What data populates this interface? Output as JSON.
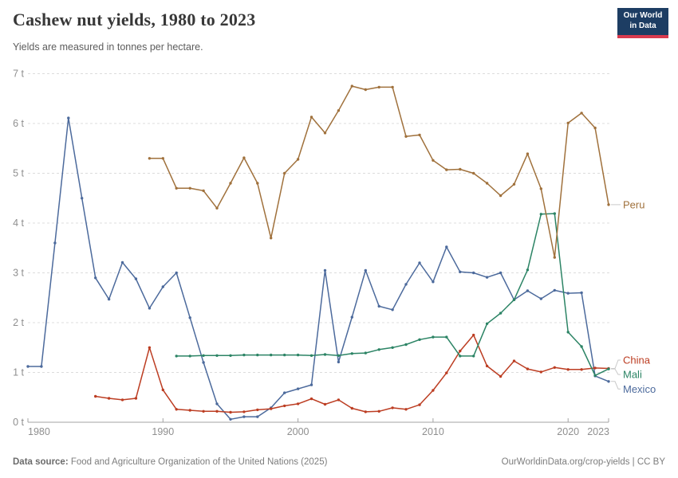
{
  "header": {
    "title": "Cashew nut yields, 1980 to 2023",
    "subtitle": "Yields are measured in tonnes per hectare."
  },
  "logo": {
    "line1": "Our World",
    "line2": "in Data",
    "bg_color": "#1d3d63",
    "stripe_color": "#d93a4e",
    "text_color": "#ffffff"
  },
  "chart_data": {
    "type": "line",
    "title": "Cashew nut yields, 1980 to 2023",
    "xlabel": "",
    "ylabel": "tonnes per hectare",
    "unit_suffix": " t",
    "xlim": [
      1980,
      2023
    ],
    "ylim": [
      0,
      7
    ],
    "grid": "dashed-horizontal",
    "legend_position": "right-edge-line-labels",
    "yticks": [
      {
        "value": 0,
        "label": "0 t"
      },
      {
        "value": 1,
        "label": "1 t"
      },
      {
        "value": 2,
        "label": "2 t"
      },
      {
        "value": 3,
        "label": "3 t"
      },
      {
        "value": 4,
        "label": "4 t"
      },
      {
        "value": 5,
        "label": "5 t"
      },
      {
        "value": 6,
        "label": "6 t"
      },
      {
        "value": 7,
        "label": "7 t"
      }
    ],
    "xticks": [
      {
        "value": 1980,
        "label": "1980"
      },
      {
        "value": 1990,
        "label": "1990"
      },
      {
        "value": 2000,
        "label": "2000"
      },
      {
        "value": 2010,
        "label": "2010"
      },
      {
        "value": 2020,
        "label": "2020"
      },
      {
        "value": 2023,
        "label": "2023"
      }
    ],
    "series": [
      {
        "name": "Mexico",
        "color": "#4C6A9C",
        "points": [
          [
            1980,
            1.12
          ],
          [
            1981,
            1.12
          ],
          [
            1982,
            3.6
          ],
          [
            1983,
            6.11
          ],
          [
            1984,
            4.5
          ],
          [
            1985,
            2.9
          ],
          [
            1986,
            2.47
          ],
          [
            1987,
            3.21
          ],
          [
            1988,
            2.88
          ],
          [
            1989,
            2.29
          ],
          [
            1990,
            2.72
          ],
          [
            1991,
            3.0
          ],
          [
            1992,
            2.1
          ],
          [
            1993,
            1.2
          ],
          [
            1994,
            0.37
          ],
          [
            1995,
            0.06
          ],
          [
            1996,
            0.11
          ],
          [
            1997,
            0.11
          ],
          [
            1998,
            0.29
          ],
          [
            1999,
            0.59
          ],
          [
            2000,
            0.67
          ],
          [
            2001,
            0.75
          ],
          [
            2002,
            3.05
          ],
          [
            2003,
            1.21
          ],
          [
            2004,
            2.11
          ],
          [
            2005,
            3.05
          ],
          [
            2006,
            2.33
          ],
          [
            2007,
            2.26
          ],
          [
            2008,
            2.77
          ],
          [
            2009,
            3.2
          ],
          [
            2010,
            2.82
          ],
          [
            2011,
            3.52
          ],
          [
            2012,
            3.02
          ],
          [
            2013,
            3.0
          ],
          [
            2014,
            2.91
          ],
          [
            2015,
            3.0
          ],
          [
            2016,
            2.46
          ],
          [
            2017,
            2.64
          ],
          [
            2018,
            2.48
          ],
          [
            2019,
            2.65
          ],
          [
            2020,
            2.59
          ],
          [
            2021,
            2.6
          ],
          [
            2022,
            0.93
          ],
          [
            2023,
            0.82
          ]
        ]
      },
      {
        "name": "China",
        "color": "#BC3D22",
        "points": [
          [
            1985,
            0.52
          ],
          [
            1986,
            0.48
          ],
          [
            1987,
            0.45
          ],
          [
            1988,
            0.48
          ],
          [
            1989,
            1.5
          ],
          [
            1990,
            0.65
          ],
          [
            1991,
            0.26
          ],
          [
            1992,
            0.24
          ],
          [
            1993,
            0.22
          ],
          [
            1994,
            0.22
          ],
          [
            1995,
            0.2
          ],
          [
            1996,
            0.21
          ],
          [
            1997,
            0.25
          ],
          [
            1998,
            0.27
          ],
          [
            1999,
            0.33
          ],
          [
            2000,
            0.37
          ],
          [
            2001,
            0.47
          ],
          [
            2002,
            0.36
          ],
          [
            2003,
            0.45
          ],
          [
            2004,
            0.28
          ],
          [
            2005,
            0.21
          ],
          [
            2006,
            0.22
          ],
          [
            2007,
            0.29
          ],
          [
            2008,
            0.26
          ],
          [
            2009,
            0.35
          ],
          [
            2010,
            0.64
          ],
          [
            2011,
            0.99
          ],
          [
            2012,
            1.43
          ],
          [
            2013,
            1.75
          ],
          [
            2014,
            1.13
          ],
          [
            2015,
            0.92
          ],
          [
            2016,
            1.23
          ],
          [
            2017,
            1.07
          ],
          [
            2018,
            1.01
          ],
          [
            2019,
            1.1
          ],
          [
            2020,
            1.06
          ],
          [
            2021,
            1.06
          ],
          [
            2022,
            1.09
          ],
          [
            2023,
            1.08
          ]
        ]
      },
      {
        "name": "Mali",
        "color": "#2C8465",
        "points": [
          [
            1991,
            1.33
          ],
          [
            1992,
            1.33
          ],
          [
            1993,
            1.34
          ],
          [
            1994,
            1.34
          ],
          [
            1995,
            1.34
          ],
          [
            1996,
            1.35
          ],
          [
            1997,
            1.35
          ],
          [
            1998,
            1.35
          ],
          [
            1999,
            1.35
          ],
          [
            2000,
            1.35
          ],
          [
            2001,
            1.34
          ],
          [
            2002,
            1.36
          ],
          [
            2003,
            1.34
          ],
          [
            2004,
            1.38
          ],
          [
            2005,
            1.39
          ],
          [
            2006,
            1.46
          ],
          [
            2007,
            1.5
          ],
          [
            2008,
            1.56
          ],
          [
            2009,
            1.66
          ],
          [
            2010,
            1.71
          ],
          [
            2011,
            1.71
          ],
          [
            2012,
            1.33
          ],
          [
            2013,
            1.33
          ],
          [
            2014,
            1.98
          ],
          [
            2015,
            2.19
          ],
          [
            2016,
            2.46
          ],
          [
            2017,
            3.06
          ],
          [
            2018,
            4.18
          ],
          [
            2019,
            4.19
          ],
          [
            2020,
            1.81
          ],
          [
            2021,
            1.52
          ],
          [
            2022,
            0.94
          ],
          [
            2023,
            1.07
          ]
        ]
      },
      {
        "name": "Peru",
        "color": "#A0713C",
        "points": [
          [
            1989,
            5.3
          ],
          [
            1990,
            5.3
          ],
          [
            1991,
            4.7
          ],
          [
            1992,
            4.7
          ],
          [
            1993,
            4.65
          ],
          [
            1994,
            4.3
          ],
          [
            1995,
            4.8
          ],
          [
            1996,
            5.31
          ],
          [
            1997,
            4.8
          ],
          [
            1998,
            3.7
          ],
          [
            1999,
            5.0
          ],
          [
            2000,
            5.28
          ],
          [
            2001,
            6.13
          ],
          [
            2002,
            5.81
          ],
          [
            2003,
            6.26
          ],
          [
            2004,
            6.75
          ],
          [
            2005,
            6.68
          ],
          [
            2006,
            6.73
          ],
          [
            2007,
            6.73
          ],
          [
            2008,
            5.74
          ],
          [
            2009,
            5.77
          ],
          [
            2010,
            5.26
          ],
          [
            2011,
            5.07
          ],
          [
            2012,
            5.08
          ],
          [
            2013,
            5.0
          ],
          [
            2014,
            4.8
          ],
          [
            2015,
            4.55
          ],
          [
            2016,
            4.78
          ],
          [
            2017,
            5.39
          ],
          [
            2018,
            4.69
          ],
          [
            2019,
            3.31
          ],
          [
            2020,
            6.01
          ],
          [
            2021,
            6.21
          ],
          [
            2022,
            5.91
          ],
          [
            2023,
            4.37
          ]
        ]
      }
    ]
  },
  "footer": {
    "source_label": "Data source:",
    "source_text": " Food and Agriculture Organization of the United Nations (2025)",
    "credit": "OurWorldinData.org/crop-yields | CC BY"
  }
}
